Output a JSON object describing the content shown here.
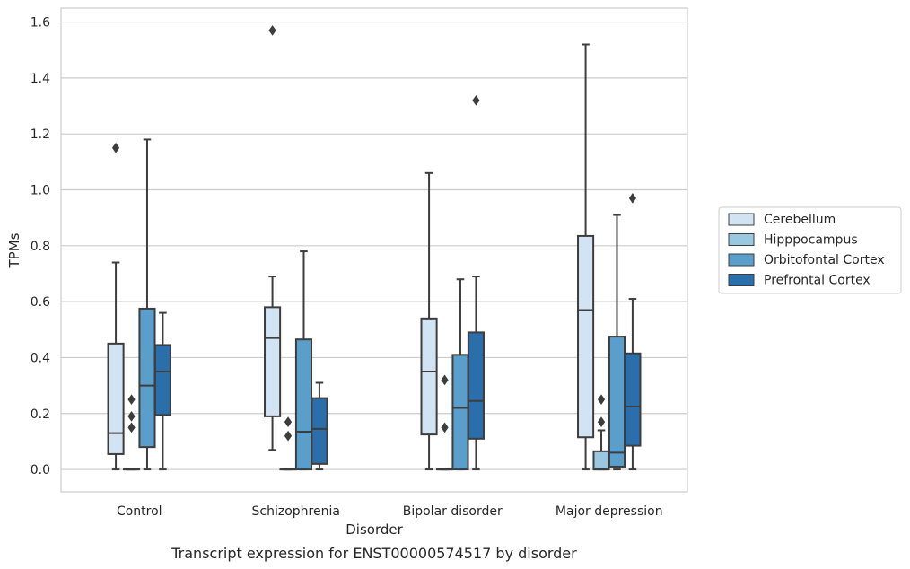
{
  "caption": "Transcript expression for ENST00000574517 by disorder",
  "chart_data": {
    "type": "box",
    "xlabel": "Disorder",
    "ylabel": "TPMs",
    "ylim": [
      -0.08,
      1.65
    ],
    "yticks": [
      "0.0",
      "0.2",
      "0.4",
      "0.6",
      "0.8",
      "1.0",
      "1.2",
      "1.4",
      "1.6"
    ],
    "grid": true,
    "legend_position": "right",
    "categories": [
      "Control",
      "Schizophrenia",
      "Bipolar disorder",
      "Major depression"
    ],
    "series": [
      {
        "name": "Cerebellum",
        "color": "#d2e3f3",
        "boxes": [
          {
            "q1": 0.055,
            "median": 0.13,
            "q3": 0.45,
            "whisker_low": 0.0,
            "whisker_high": 0.74,
            "outliers": [
              1.15
            ]
          },
          {
            "q1": 0.19,
            "median": 0.47,
            "q3": 0.58,
            "whisker_low": 0.07,
            "whisker_high": 0.69,
            "outliers": [
              1.57
            ]
          },
          {
            "q1": 0.125,
            "median": 0.35,
            "q3": 0.54,
            "whisker_low": 0.0,
            "whisker_high": 1.06,
            "outliers": []
          },
          {
            "q1": 0.115,
            "median": 0.57,
            "q3": 0.835,
            "whisker_low": 0.0,
            "whisker_high": 1.52,
            "outliers": []
          }
        ]
      },
      {
        "name": "Hipppocampus",
        "color": "#9ac8e0",
        "boxes": [
          {
            "q1": 0.0,
            "median": 0.0,
            "q3": 0.0,
            "whisker_low": 0.0,
            "whisker_high": 0.0,
            "outliers": [
              0.15,
              0.19,
              0.25
            ]
          },
          {
            "q1": 0.0,
            "median": 0.0,
            "q3": 0.0,
            "whisker_low": 0.0,
            "whisker_high": 0.0,
            "outliers": [
              0.12,
              0.17
            ]
          },
          {
            "q1": 0.0,
            "median": 0.0,
            "q3": 0.0,
            "whisker_low": 0.0,
            "whisker_high": 0.0,
            "outliers": [
              0.15,
              0.32
            ]
          },
          {
            "q1": 0.0,
            "median": 0.0,
            "q3": 0.065,
            "whisker_low": 0.0,
            "whisker_high": 0.14,
            "outliers": [
              0.17,
              0.25
            ]
          }
        ]
      },
      {
        "name": "Orbitofontal Cortex",
        "color": "#5a9fcc",
        "boxes": [
          {
            "q1": 0.08,
            "median": 0.3,
            "q3": 0.575,
            "whisker_low": 0.0,
            "whisker_high": 1.18,
            "outliers": []
          },
          {
            "q1": 0.0,
            "median": 0.135,
            "q3": 0.465,
            "whisker_low": 0.0,
            "whisker_high": 0.78,
            "outliers": []
          },
          {
            "q1": 0.0,
            "median": 0.22,
            "q3": 0.41,
            "whisker_low": 0.0,
            "whisker_high": 0.68,
            "outliers": []
          },
          {
            "q1": 0.01,
            "median": 0.06,
            "q3": 0.475,
            "whisker_low": 0.0,
            "whisker_high": 0.91,
            "outliers": []
          }
        ]
      },
      {
        "name": "Prefrontal Cortex",
        "color": "#2a6eab",
        "boxes": [
          {
            "q1": 0.195,
            "median": 0.35,
            "q3": 0.445,
            "whisker_low": 0.0,
            "whisker_high": 0.56,
            "outliers": []
          },
          {
            "q1": 0.02,
            "median": 0.145,
            "q3": 0.255,
            "whisker_low": 0.0,
            "whisker_high": 0.31,
            "outliers": []
          },
          {
            "q1": 0.11,
            "median": 0.245,
            "q3": 0.49,
            "whisker_low": 0.0,
            "whisker_high": 0.69,
            "outliers": [
              1.32
            ]
          },
          {
            "q1": 0.085,
            "median": 0.225,
            "q3": 0.415,
            "whisker_low": 0.0,
            "whisker_high": 0.61,
            "outliers": [
              0.97
            ]
          }
        ]
      }
    ]
  }
}
